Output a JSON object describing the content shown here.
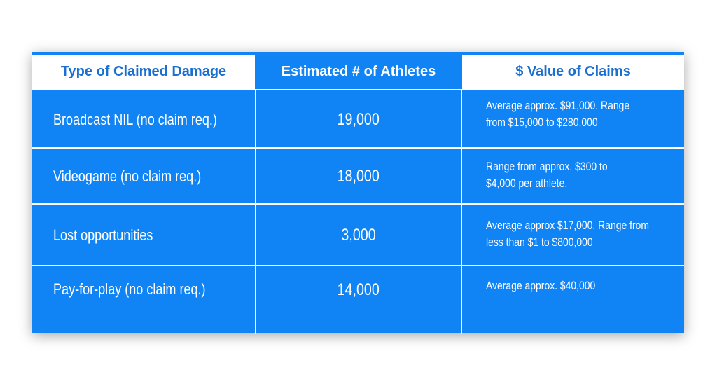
{
  "table": {
    "headers": [
      "Type of Claimed Damage",
      "Estimated # of Athletes",
      "$ Value of Claims"
    ],
    "rows": [
      {
        "type": "Broadcast NIL (no claim req.)",
        "athletes": "19,000",
        "value_lines": [
          "Average approx. $91,000. Range",
          "from $15,000 to $280,000"
        ]
      },
      {
        "type": "Videogame (no claim req.)",
        "athletes": "18,000",
        "value_lines": [
          "Range from approx. $300 to",
          "$4,000 per athlete."
        ]
      },
      {
        "type": "Lost opportunities",
        "athletes": "3,000",
        "value_lines": [
          "Average approx $17,000. Range from",
          "less than $1 to $800,000"
        ]
      },
      {
        "type": "Pay-for-play (no claim req.)",
        "athletes": "14,000",
        "value_lines": [
          "Average approx. $40,000"
        ]
      }
    ]
  },
  "colors": {
    "table_blue": "#1184f5",
    "header_text_blue": "#1a6fd0",
    "text_white": "#ffffff"
  }
}
